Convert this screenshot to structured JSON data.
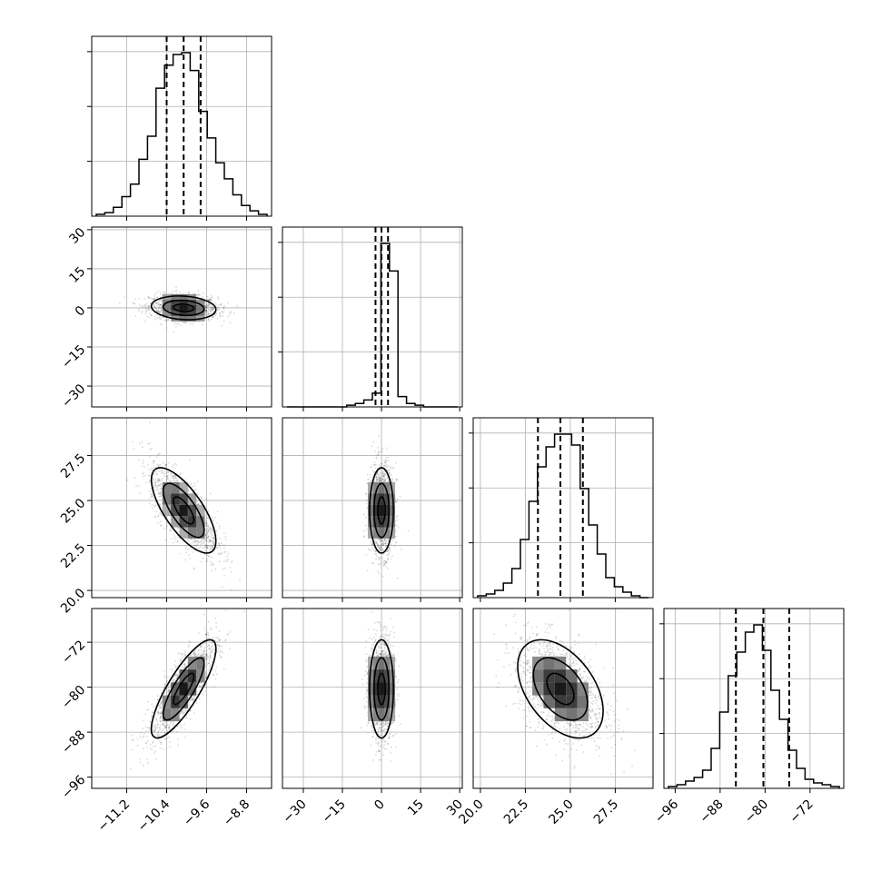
{
  "chart_data": {
    "type": "corner",
    "parameters": [
      {
        "ticks": [
          -11.2,
          -10.4,
          -9.6,
          -8.8
        ],
        "tick_labels": [
          "−11.2",
          "−10.4",
          "−9.6",
          "−8.8"
        ],
        "range": [
          -11.9,
          -8.3
        ],
        "quantiles": [
          -10.4,
          -10.06,
          -9.72
        ],
        "mean": -10.06,
        "std": 0.34
      },
      {
        "ticks": [
          -30,
          -15,
          0,
          15,
          30
        ],
        "tick_labels": [
          "−30",
          "−15",
          "0",
          "15",
          "30"
        ],
        "range": [
          -38,
          31
        ],
        "quantiles": [
          -2.3,
          0.0,
          2.5
        ],
        "mean": 0.0,
        "std": 2.4
      },
      {
        "ticks": [
          20.0,
          22.5,
          25.0,
          27.5
        ],
        "tick_labels": [
          "20.0",
          "22.5",
          "25.0",
          "27.5"
        ],
        "range": [
          19.6,
          29.6
        ],
        "quantiles": [
          23.2,
          24.45,
          25.7
        ],
        "mean": 24.45,
        "std": 1.25
      },
      {
        "ticks": [
          -96,
          -88,
          -80,
          -72
        ],
        "tick_labels": [
          "−96",
          "−88",
          "−80",
          "−72"
        ],
        "range": [
          -98,
          -66
        ],
        "quantiles": [
          -85.2,
          -80.3,
          -75.7
        ],
        "mean": -80.3,
        "std": 4.6
      }
    ],
    "marginal_histograms": [
      [
        1,
        2,
        5,
        11,
        18,
        32,
        45,
        72,
        85,
        91,
        92,
        82,
        59,
        44,
        30,
        21,
        12,
        6,
        3,
        1
      ],
      [
        0,
        0,
        0,
        0,
        0,
        0,
        0,
        1,
        2,
        4,
        8,
        95,
        79,
        6,
        2,
        1,
        0,
        0,
        0,
        0
      ],
      [
        1,
        2,
        4,
        8,
        16,
        32,
        53,
        72,
        83,
        90,
        90,
        84,
        60,
        40,
        24,
        11,
        6,
        3,
        1,
        0
      ],
      [
        1,
        2,
        4,
        6,
        10,
        22,
        42,
        62,
        75,
        86,
        90,
        76,
        54,
        38,
        21,
        11,
        5,
        3,
        2,
        1
      ]
    ],
    "correlations": [
      [
        0,
        1,
        -0.15
      ],
      [
        0,
        2,
        -0.72
      ],
      [
        0,
        3,
        0.82
      ],
      [
        1,
        2,
        0.0
      ],
      [
        1,
        3,
        0.0
      ],
      [
        2,
        3,
        -0.45
      ]
    ],
    "grid": true
  }
}
